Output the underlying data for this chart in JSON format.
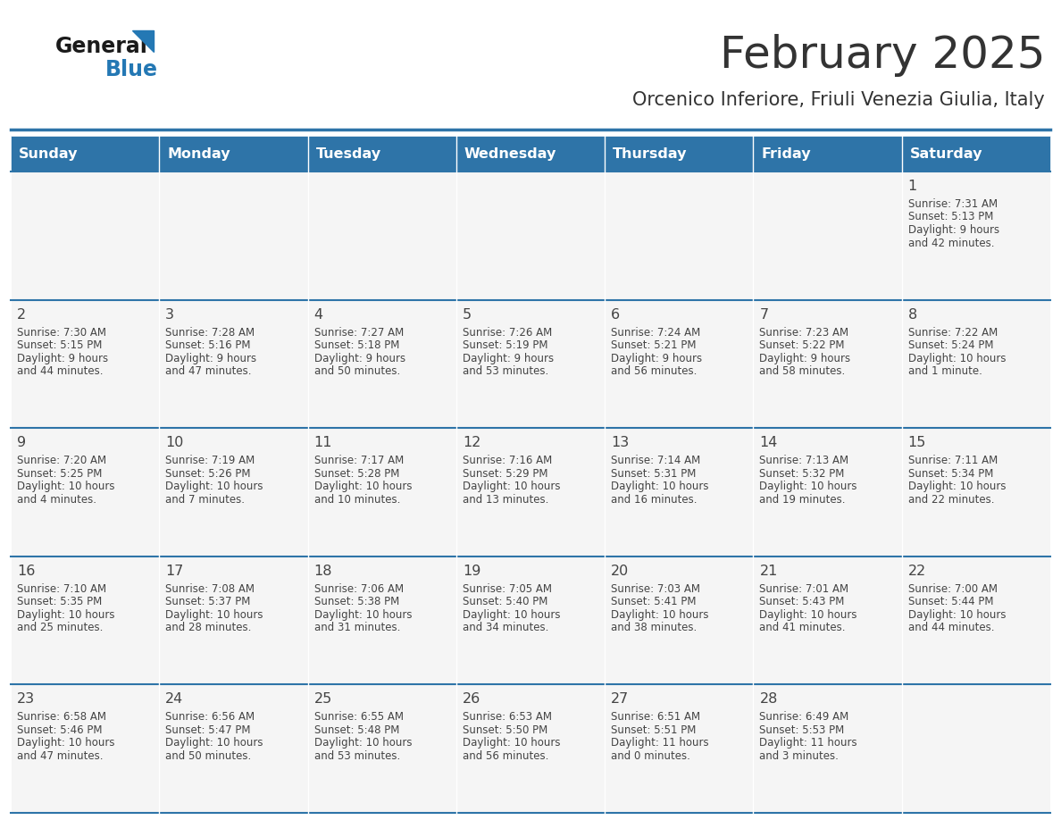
{
  "title": "February 2025",
  "subtitle": "Orcenico Inferiore, Friuli Venezia Giulia, Italy",
  "header_bg": "#2E74A8",
  "header_text": "#FFFFFF",
  "cell_bg": "#F5F5F5",
  "day_names": [
    "Sunday",
    "Monday",
    "Tuesday",
    "Wednesday",
    "Thursday",
    "Friday",
    "Saturday"
  ],
  "calendar": [
    [
      null,
      null,
      null,
      null,
      null,
      null,
      {
        "day": "1",
        "sunrise": "7:31 AM",
        "sunset": "5:13 PM",
        "daylight": "9 hours",
        "daylight2": "and 42 minutes."
      }
    ],
    [
      {
        "day": "2",
        "sunrise": "7:30 AM",
        "sunset": "5:15 PM",
        "daylight": "9 hours",
        "daylight2": "and 44 minutes."
      },
      {
        "day": "3",
        "sunrise": "7:28 AM",
        "sunset": "5:16 PM",
        "daylight": "9 hours",
        "daylight2": "and 47 minutes."
      },
      {
        "day": "4",
        "sunrise": "7:27 AM",
        "sunset": "5:18 PM",
        "daylight": "9 hours",
        "daylight2": "and 50 minutes."
      },
      {
        "day": "5",
        "sunrise": "7:26 AM",
        "sunset": "5:19 PM",
        "daylight": "9 hours",
        "daylight2": "and 53 minutes."
      },
      {
        "day": "6",
        "sunrise": "7:24 AM",
        "sunset": "5:21 PM",
        "daylight": "9 hours",
        "daylight2": "and 56 minutes."
      },
      {
        "day": "7",
        "sunrise": "7:23 AM",
        "sunset": "5:22 PM",
        "daylight": "9 hours",
        "daylight2": "and 58 minutes."
      },
      {
        "day": "8",
        "sunrise": "7:22 AM",
        "sunset": "5:24 PM",
        "daylight": "10 hours",
        "daylight2": "and 1 minute."
      }
    ],
    [
      {
        "day": "9",
        "sunrise": "7:20 AM",
        "sunset": "5:25 PM",
        "daylight": "10 hours",
        "daylight2": "and 4 minutes."
      },
      {
        "day": "10",
        "sunrise": "7:19 AM",
        "sunset": "5:26 PM",
        "daylight": "10 hours",
        "daylight2": "and 7 minutes."
      },
      {
        "day": "11",
        "sunrise": "7:17 AM",
        "sunset": "5:28 PM",
        "daylight": "10 hours",
        "daylight2": "and 10 minutes."
      },
      {
        "day": "12",
        "sunrise": "7:16 AM",
        "sunset": "5:29 PM",
        "daylight": "10 hours",
        "daylight2": "and 13 minutes."
      },
      {
        "day": "13",
        "sunrise": "7:14 AM",
        "sunset": "5:31 PM",
        "daylight": "10 hours",
        "daylight2": "and 16 minutes."
      },
      {
        "day": "14",
        "sunrise": "7:13 AM",
        "sunset": "5:32 PM",
        "daylight": "10 hours",
        "daylight2": "and 19 minutes."
      },
      {
        "day": "15",
        "sunrise": "7:11 AM",
        "sunset": "5:34 PM",
        "daylight": "10 hours",
        "daylight2": "and 22 minutes."
      }
    ],
    [
      {
        "day": "16",
        "sunrise": "7:10 AM",
        "sunset": "5:35 PM",
        "daylight": "10 hours",
        "daylight2": "and 25 minutes."
      },
      {
        "day": "17",
        "sunrise": "7:08 AM",
        "sunset": "5:37 PM",
        "daylight": "10 hours",
        "daylight2": "and 28 minutes."
      },
      {
        "day": "18",
        "sunrise": "7:06 AM",
        "sunset": "5:38 PM",
        "daylight": "10 hours",
        "daylight2": "and 31 minutes."
      },
      {
        "day": "19",
        "sunrise": "7:05 AM",
        "sunset": "5:40 PM",
        "daylight": "10 hours",
        "daylight2": "and 34 minutes."
      },
      {
        "day": "20",
        "sunrise": "7:03 AM",
        "sunset": "5:41 PM",
        "daylight": "10 hours",
        "daylight2": "and 38 minutes."
      },
      {
        "day": "21",
        "sunrise": "7:01 AM",
        "sunset": "5:43 PM",
        "daylight": "10 hours",
        "daylight2": "and 41 minutes."
      },
      {
        "day": "22",
        "sunrise": "7:00 AM",
        "sunset": "5:44 PM",
        "daylight": "10 hours",
        "daylight2": "and 44 minutes."
      }
    ],
    [
      {
        "day": "23",
        "sunrise": "6:58 AM",
        "sunset": "5:46 PM",
        "daylight": "10 hours",
        "daylight2": "and 47 minutes."
      },
      {
        "day": "24",
        "sunrise": "6:56 AM",
        "sunset": "5:47 PM",
        "daylight": "10 hours",
        "daylight2": "and 50 minutes."
      },
      {
        "day": "25",
        "sunrise": "6:55 AM",
        "sunset": "5:48 PM",
        "daylight": "10 hours",
        "daylight2": "and 53 minutes."
      },
      {
        "day": "26",
        "sunrise": "6:53 AM",
        "sunset": "5:50 PM",
        "daylight": "10 hours",
        "daylight2": "and 56 minutes."
      },
      {
        "day": "27",
        "sunrise": "6:51 AM",
        "sunset": "5:51 PM",
        "daylight": "11 hours",
        "daylight2": "and 0 minutes."
      },
      {
        "day": "28",
        "sunrise": "6:49 AM",
        "sunset": "5:53 PM",
        "daylight": "11 hours",
        "daylight2": "and 3 minutes."
      },
      null
    ]
  ],
  "divider_color": "#2E74A8",
  "text_color": "#444444",
  "title_color": "#333333"
}
